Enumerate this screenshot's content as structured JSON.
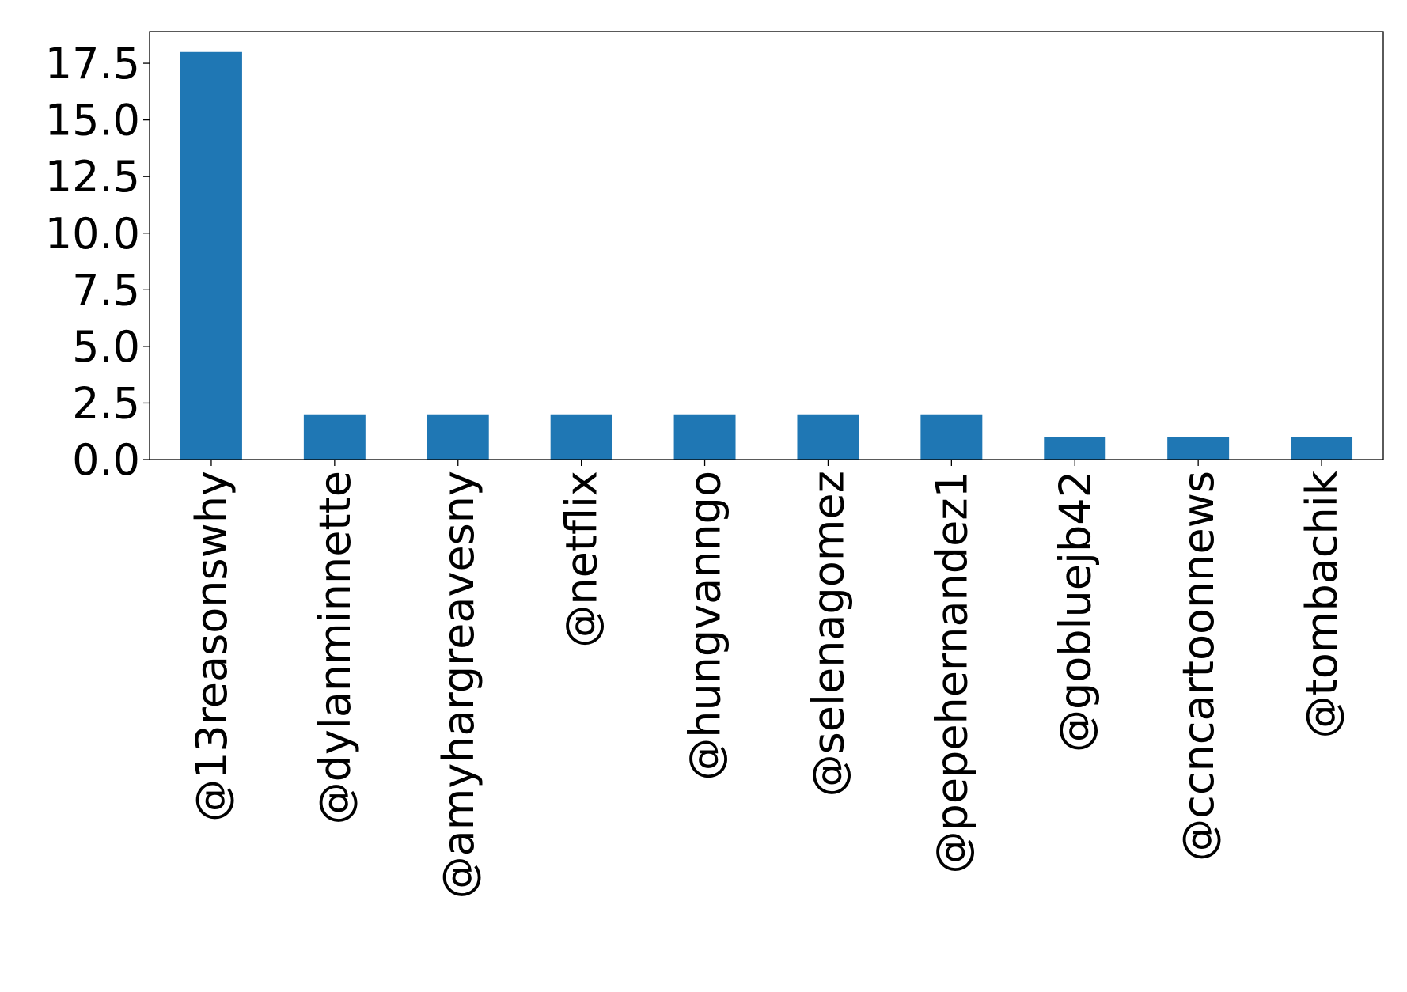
{
  "chart_data": {
    "type": "bar",
    "categories": [
      "@13reasonswhy",
      "@dylanminnette",
      "@amyhargreavesny",
      "@netflix",
      "@hungvanngo",
      "@selenagomez",
      "@pepehernandez1",
      "@gobluejb42",
      "@ccncartoonnews",
      "@tombachik"
    ],
    "values": [
      18,
      2,
      2,
      2,
      2,
      2,
      2,
      1,
      1,
      1
    ],
    "title": "",
    "xlabel": "",
    "ylabel": "",
    "ylim": [
      0,
      18.9
    ],
    "yticks": [
      "0.0",
      "2.5",
      "5.0",
      "7.5",
      "10.0",
      "12.5",
      "15.0",
      "17.5"
    ],
    "grid": false,
    "bar_color": "#1f77b4"
  }
}
